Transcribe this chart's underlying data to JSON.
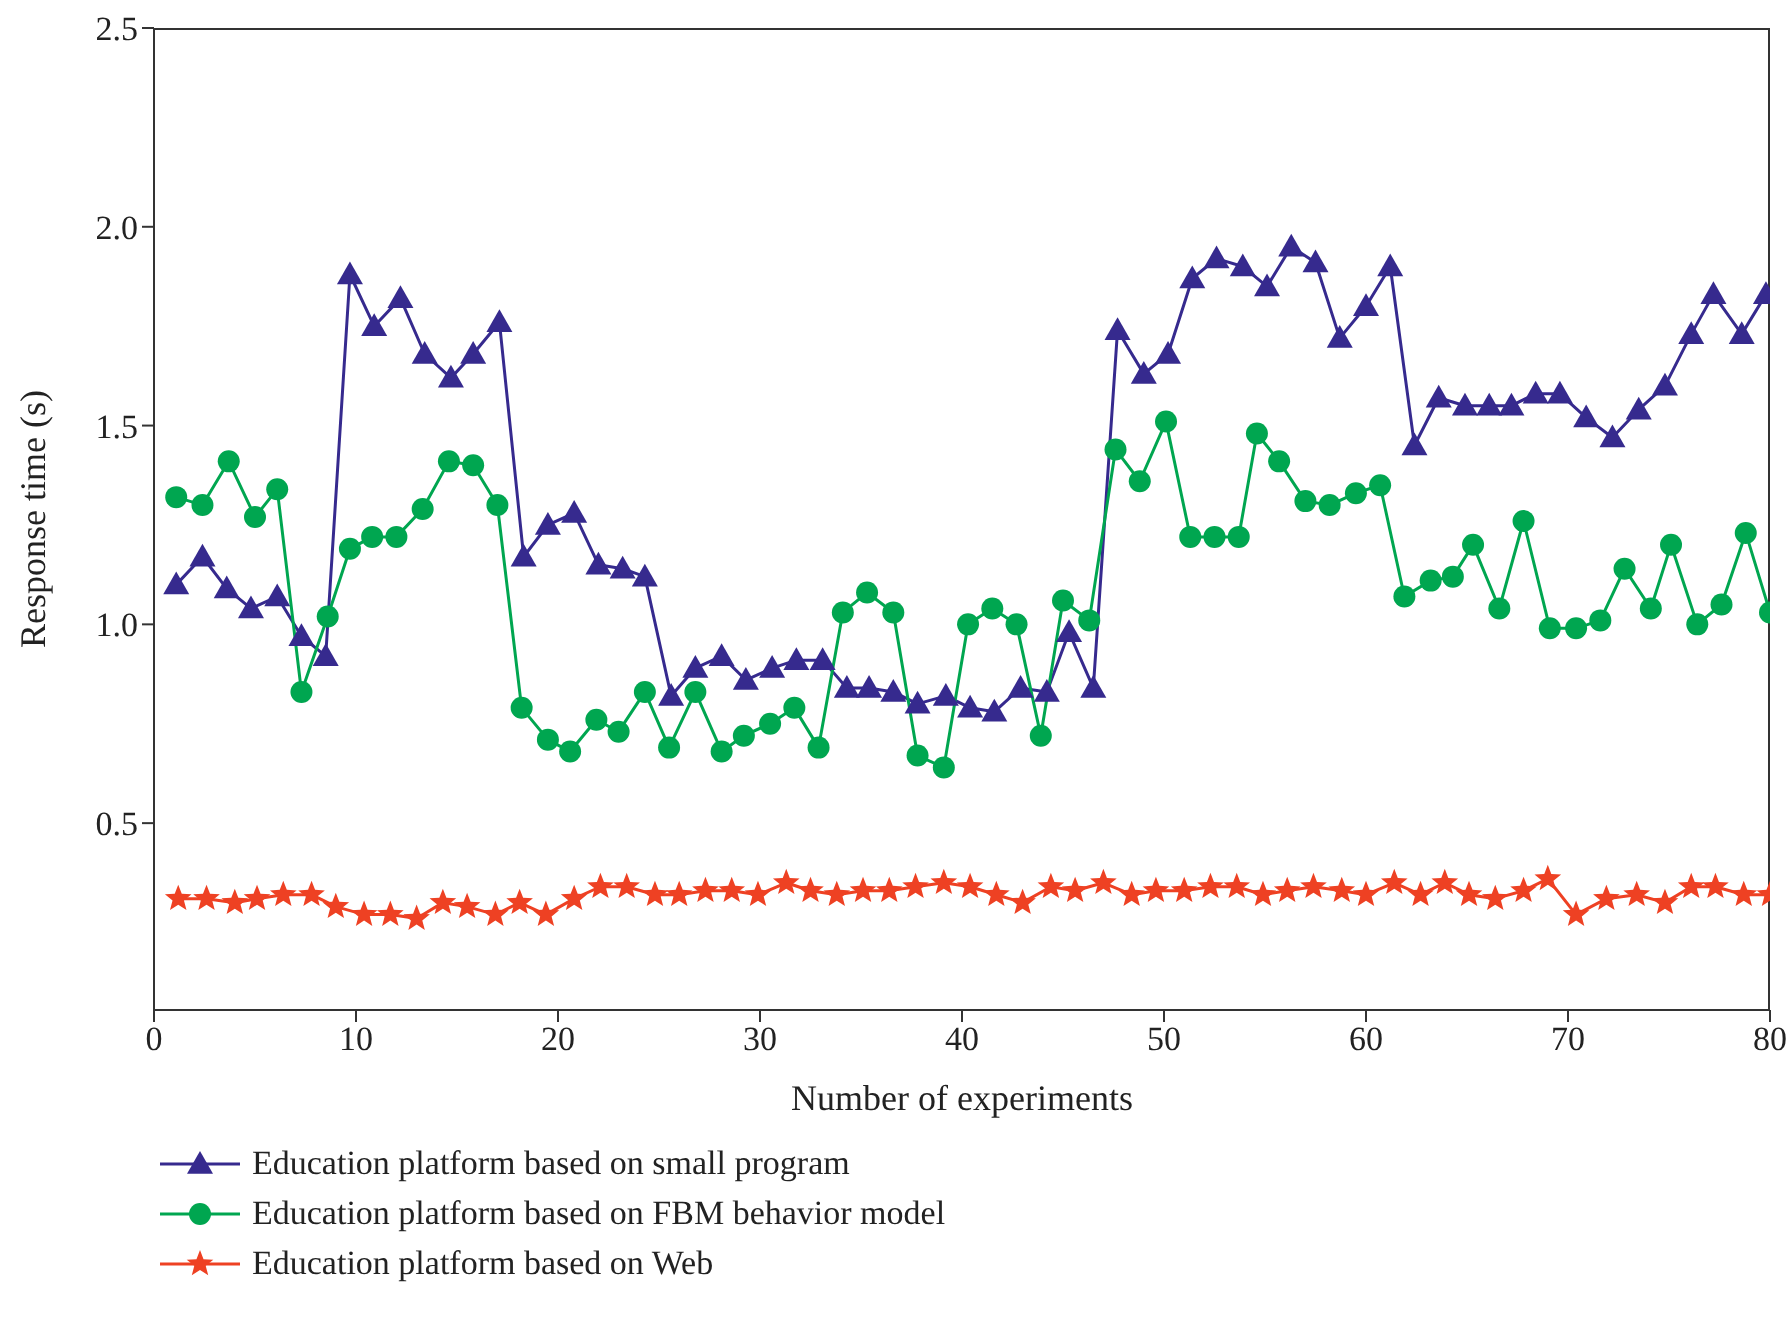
{
  "chart_data": {
    "type": "line",
    "xlabel": "Number of experiments",
    "ylabel": "Response time (s)",
    "xlim": [
      0,
      80
    ],
    "xticks": [
      0,
      10,
      20,
      30,
      40,
      50,
      60,
      70,
      80
    ],
    "ylim": [
      0.03,
      2.5
    ],
    "yticks": [
      0.5,
      {
        "value": 1,
        "label": "1.0"
      },
      1.5,
      {
        "value": 2,
        "label": "2.0"
      },
      2.5
    ],
    "legend": "bottom",
    "line_style": "solid",
    "series": [
      {
        "name": "Education platform based on small program",
        "color": "#362a8e",
        "marker": "triangle",
        "x": [
          1.1,
          2.4,
          3.6,
          4.8,
          6.1,
          7.3,
          8.5,
          9.7,
          10.9,
          12.2,
          13.4,
          14.7,
          15.8,
          17.1,
          18.3,
          19.5,
          20.8,
          22.0,
          23.2,
          24.3,
          25.6,
          26.8,
          28.1,
          29.3,
          30.6,
          31.8,
          33.1,
          34.3,
          35.4,
          36.6,
          37.8,
          39.2,
          40.4,
          41.6,
          42.9,
          44.2,
          45.3,
          46.5,
          47.7,
          49.0,
          50.2,
          51.4,
          52.6,
          53.9,
          55.1,
          56.3,
          57.5,
          58.7,
          60.0,
          61.2,
          62.4,
          63.6,
          64.9,
          66.1,
          67.2,
          68.4,
          69.6,
          70.9,
          72.2,
          73.5,
          74.8,
          76.1,
          77.2,
          78.6,
          79.8
        ],
        "values": [
          1.1,
          1.17,
          1.09,
          1.04,
          1.07,
          0.97,
          0.92,
          1.88,
          1.75,
          1.82,
          1.68,
          1.62,
          1.68,
          1.76,
          1.17,
          1.25,
          1.28,
          1.15,
          1.14,
          1.12,
          0.82,
          0.89,
          0.92,
          0.86,
          0.89,
          0.91,
          0.91,
          0.84,
          0.84,
          0.83,
          0.8,
          0.82,
          0.79,
          0.78,
          0.84,
          0.83,
          0.98,
          0.84,
          1.74,
          1.63,
          1.68,
          1.87,
          1.92,
          1.9,
          1.85,
          1.95,
          1.91,
          1.72,
          1.8,
          1.9,
          1.45,
          1.57,
          1.55,
          1.55,
          1.55,
          1.58,
          1.58,
          1.52,
          1.47,
          1.54,
          1.6,
          1.73,
          1.83,
          1.73,
          1.83
        ]
      },
      {
        "name": "Education platform based on FBM behavior model",
        "color": "#00a650",
        "marker": "circle",
        "x": [
          1.1,
          2.4,
          3.7,
          5.0,
          6.1,
          7.3,
          8.6,
          9.7,
          10.8,
          12.0,
          13.3,
          14.6,
          15.8,
          17.0,
          18.2,
          19.5,
          20.6,
          21.9,
          23.0,
          24.3,
          25.5,
          26.8,
          28.1,
          29.2,
          30.5,
          31.7,
          32.9,
          34.1,
          35.3,
          36.6,
          37.8,
          39.1,
          40.3,
          41.5,
          42.7,
          43.9,
          45.0,
          46.3,
          47.6,
          48.8,
          50.1,
          51.3,
          52.5,
          53.7,
          54.6,
          55.7,
          57.0,
          58.2,
          59.5,
          60.7,
          61.9,
          63.2,
          64.3,
          65.3,
          66.6,
          67.8,
          69.1,
          70.4,
          71.6,
          72.8,
          74.1,
          75.1,
          76.4,
          77.6,
          78.8,
          80.0
        ],
        "values": [
          1.32,
          1.3,
          1.41,
          1.27,
          1.34,
          0.83,
          1.02,
          1.19,
          1.22,
          1.22,
          1.29,
          1.41,
          1.4,
          1.3,
          0.79,
          0.71,
          0.68,
          0.76,
          0.73,
          0.83,
          0.69,
          0.83,
          0.68,
          0.72,
          0.75,
          0.79,
          0.69,
          1.03,
          1.08,
          1.03,
          0.67,
          0.64,
          1.0,
          1.04,
          1.0,
          0.72,
          1.06,
          1.01,
          1.44,
          1.36,
          1.51,
          1.22,
          1.22,
          1.22,
          1.48,
          1.41,
          1.31,
          1.3,
          1.33,
          1.35,
          1.07,
          1.11,
          1.12,
          1.2,
          1.04,
          1.26,
          0.99,
          0.99,
          1.01,
          1.14,
          1.04,
          1.2,
          1.0,
          1.05,
          1.23,
          1.03
        ]
      },
      {
        "name": "Education platform based on Web",
        "color": "#ee4123",
        "marker": "star",
        "x": [
          1.2,
          2.6,
          4.0,
          5.1,
          6.4,
          7.8,
          9.0,
          10.4,
          11.7,
          13.0,
          14.3,
          15.5,
          16.9,
          18.1,
          19.4,
          20.8,
          22.1,
          23.4,
          24.8,
          26.0,
          27.3,
          28.6,
          29.9,
          31.3,
          32.5,
          33.8,
          35.1,
          36.4,
          37.7,
          39.1,
          40.4,
          41.7,
          43.0,
          44.4,
          45.6,
          47.0,
          48.4,
          49.6,
          51.0,
          52.3,
          53.6,
          54.9,
          56.1,
          57.4,
          58.8,
          60.0,
          61.4,
          62.7,
          63.9,
          65.1,
          66.4,
          67.8,
          69.0,
          70.4,
          71.9,
          73.4,
          74.8,
          76.1,
          77.3,
          78.7,
          80.0
        ],
        "values": [
          0.31,
          0.31,
          0.3,
          0.31,
          0.32,
          0.32,
          0.29,
          0.27,
          0.27,
          0.26,
          0.3,
          0.29,
          0.27,
          0.3,
          0.27,
          0.31,
          0.34,
          0.34,
          0.32,
          0.32,
          0.33,
          0.33,
          0.32,
          0.35,
          0.33,
          0.32,
          0.33,
          0.33,
          0.34,
          0.35,
          0.34,
          0.32,
          0.3,
          0.34,
          0.33,
          0.35,
          0.32,
          0.33,
          0.33,
          0.34,
          0.34,
          0.32,
          0.33,
          0.34,
          0.33,
          0.32,
          0.35,
          0.32,
          0.35,
          0.32,
          0.31,
          0.33,
          0.36,
          0.27,
          0.31,
          0.32,
          0.3,
          0.34,
          0.34,
          0.32,
          0.32
        ]
      }
    ]
  }
}
